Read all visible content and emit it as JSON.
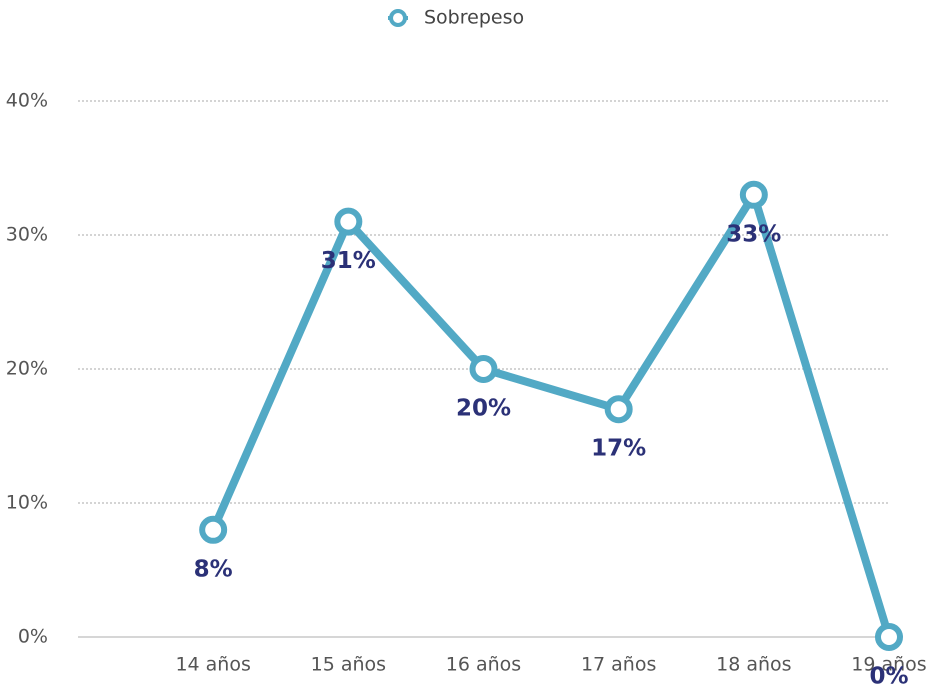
{
  "chart_data": {
    "type": "line",
    "categories": [
      "14 años",
      "15 años",
      "16 años",
      "17 años",
      "18 años",
      "19 años"
    ],
    "series": [
      {
        "name": "Sobrepeso",
        "color": "#52a9c5",
        "values": [
          8,
          31,
          20,
          17,
          33,
          0
        ],
        "value_labels": [
          "8%",
          "31%",
          "20%",
          "17%",
          "33%",
          "0%"
        ]
      }
    ],
    "ylim": [
      0,
      40
    ],
    "yticks": [
      {
        "value": 0,
        "label": "0%"
      },
      {
        "value": 10,
        "label": "10%"
      },
      {
        "value": 20,
        "label": "20%"
      },
      {
        "value": 30,
        "label": "30%"
      },
      {
        "value": 40,
        "label": "40%"
      }
    ],
    "grid": true,
    "legend": "top"
  }
}
